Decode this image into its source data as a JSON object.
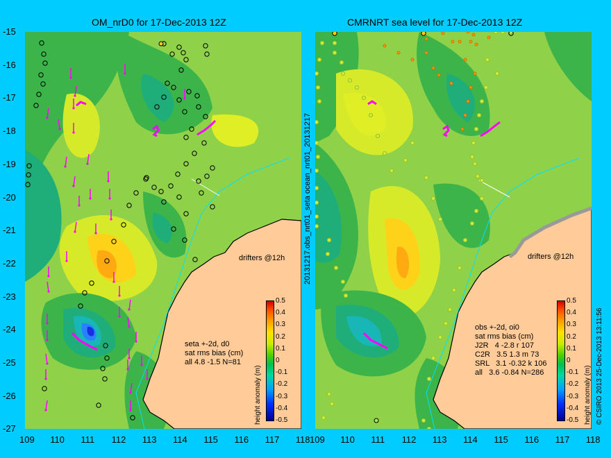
{
  "left": {
    "title": "OM_nrD0 for 17-Dec-2013 12Z",
    "stats": "seta +-2d, d0\nsat rms bias (cm)\nall 4.8 -1.5 N=81"
  },
  "right": {
    "title": "CMRNRT sea level  for 17-Dec-2013 12Z",
    "stats": "obs +-2d, oi0\nsat rms bias (cm)\nJ2R   4 -2.8 r 107\nC2R   3.5 1.3 m 73\nSRL   3.1 -0.32 k 106\nall   3.6 -0.84 N=286"
  },
  "y_ticks": [
    "-15",
    "-16",
    "-17",
    "-18",
    "-19",
    "-20",
    "-21",
    "-22",
    "-23",
    "-24",
    "-25",
    "-26",
    "-27"
  ],
  "x_ticks_left": [
    "109",
    "110",
    "111",
    "112",
    "113",
    "114",
    "115",
    "116",
    "117",
    "118"
  ],
  "x_ticks_right": [
    "109",
    "110",
    "111",
    "112",
    "113",
    "114",
    "115",
    "116",
    "117",
    "118"
  ],
  "drifters_label": "drifters @12h",
  "colorbar": {
    "label": "height anomaly (m)",
    "ticks": [
      "0.5",
      "0.4",
      "0.3",
      "0.2",
      "0.1",
      "0",
      "-0.1",
      "-0.2",
      "-0.3",
      "-0.4",
      "-0.5"
    ]
  },
  "middle_text": "20131217.obs_nrt01_seta      ocean_nrt01_20131217",
  "credit": "© CSIRO 2013   25-Dec-2013 13:11:56",
  "colors": {
    "background": "#00ccff",
    "land": "#ffcc99",
    "drifter": "#ff00ff",
    "coast": "#000000"
  }
}
